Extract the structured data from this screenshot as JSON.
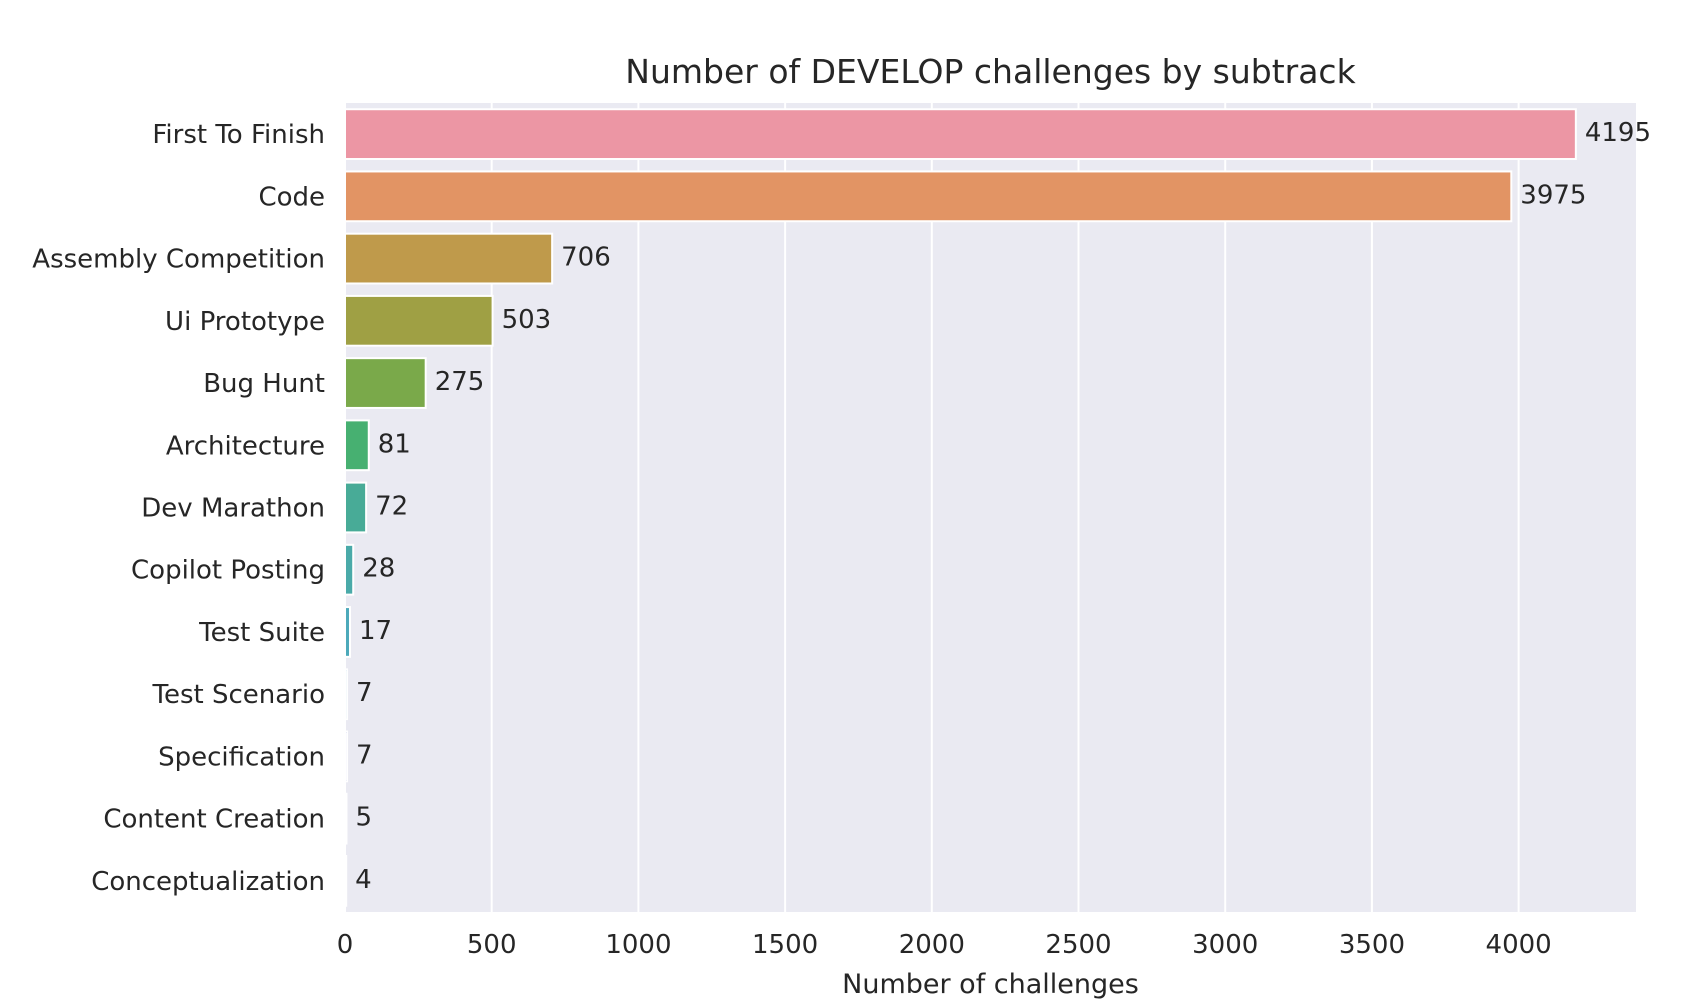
{
  "chart_data": {
    "type": "bar",
    "orientation": "horizontal",
    "title": "Number of DEVELOP challenges by subtrack",
    "xlabel": "Number of challenges",
    "ylabel": "",
    "xlim": [
      0,
      4400
    ],
    "xticks": [
      0,
      500,
      1000,
      1500,
      2000,
      2500,
      3000,
      3500,
      4000
    ],
    "grid": true,
    "legend": "none",
    "categories": [
      "First To Finish",
      "Code",
      "Assembly Competition",
      "Ui Prototype",
      "Bug Hunt",
      "Architecture",
      "Dev Marathon",
      "Copilot Posting",
      "Test Suite",
      "Test Scenario",
      "Specification",
      "Content Creation",
      "Conceptualization"
    ],
    "values": [
      4195,
      3975,
      706,
      503,
      275,
      81,
      72,
      28,
      17,
      7,
      7,
      5,
      4
    ],
    "colors": [
      "#ec96a4",
      "#e29464",
      "#bf9a4b",
      "#9fa044",
      "#7aa94a",
      "#47b071",
      "#48ab97",
      "#4aaaa9",
      "#4ca9ba",
      "#5aa6cf",
      "#9aa0dc",
      "#c596de",
      "#e48ecd"
    ],
    "background_color": "#eaeaf2",
    "grid_color": "#ffffff"
  }
}
